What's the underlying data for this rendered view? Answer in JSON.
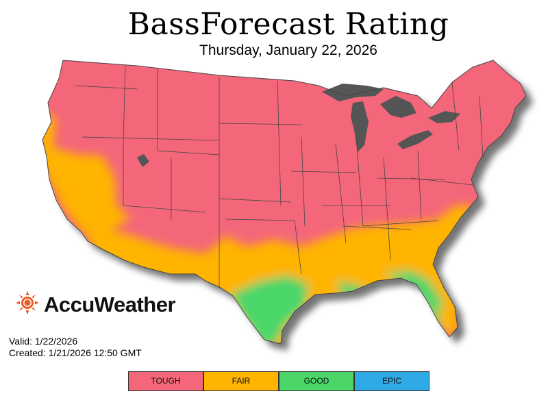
{
  "title": "BassForecast Rating",
  "subtitle": "Thursday, January 22, 2026",
  "brand": {
    "name": "AccuWeather",
    "icon": "sun-icon",
    "accent": "#ef5a24"
  },
  "valid": "Valid: 1/22/2026",
  "created": "Created: 1/21/2026 12:50 GMT",
  "legend": [
    {
      "label": "TOUGH",
      "color": "#f4677a"
    },
    {
      "label": "FAIR",
      "color": "#ffb400"
    },
    {
      "label": "GOOD",
      "color": "#4cd66a"
    },
    {
      "label": "EPIC",
      "color": "#2fa8e6"
    }
  ],
  "colors": {
    "water": "#555555",
    "border": "#444444"
  }
}
